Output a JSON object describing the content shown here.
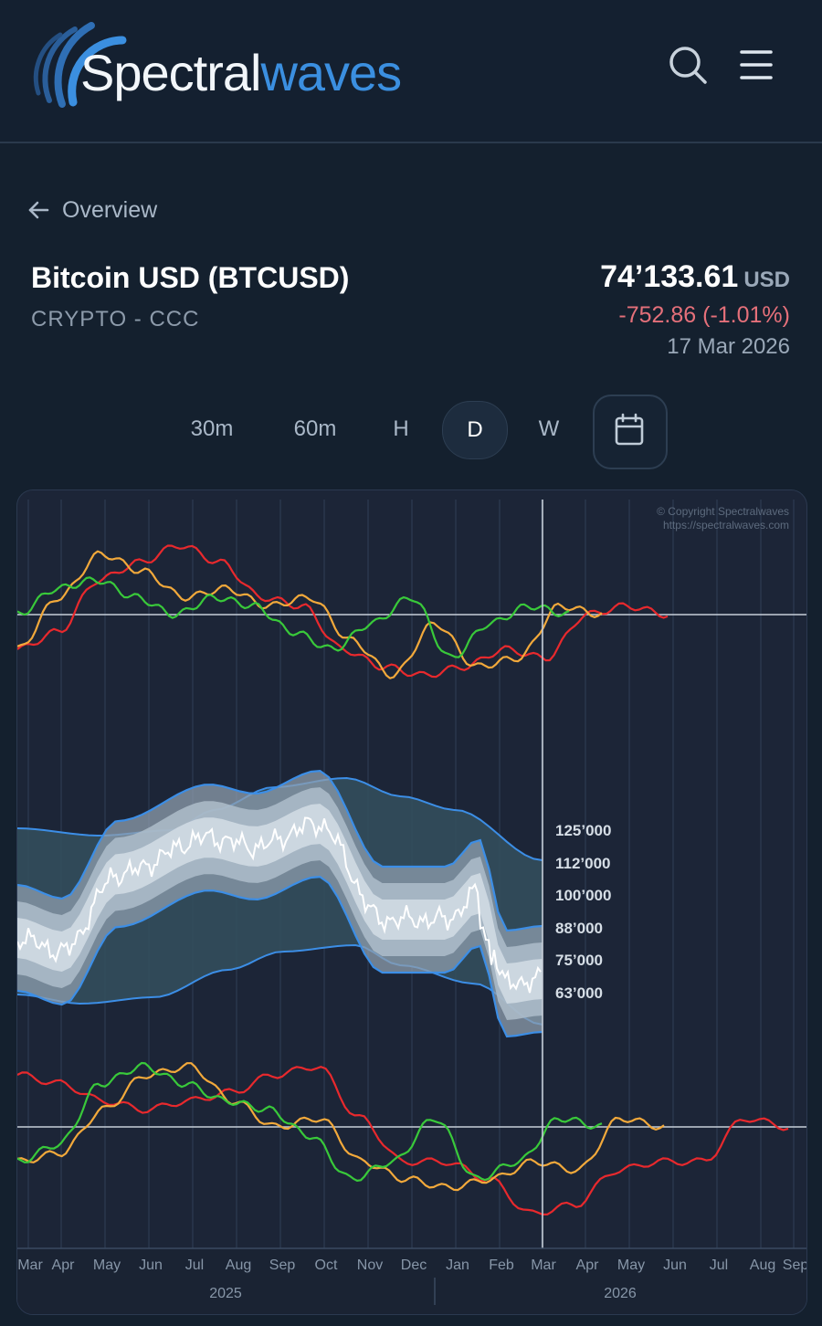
{
  "header": {
    "logo_part1": "Spectral",
    "logo_part2": "waves"
  },
  "nav": {
    "back_label": "Overview"
  },
  "instrument": {
    "name": "Bitcoin USD (BTCUSD)",
    "subtitle": "CRYPTO - CCC",
    "price": "74’133.61",
    "currency": "USD",
    "change": "-752.86 (-1.01%)",
    "date": "17 Mar 2026"
  },
  "timeframes": {
    "items": [
      "30m",
      "60m",
      "H",
      "D",
      "W"
    ],
    "active": "D"
  },
  "colors": {
    "background": "#14202e",
    "accent": "#3b8fe0",
    "negative": "#e5707a",
    "line_red": "#e8292d",
    "line_orange": "#f2a93b",
    "line_green": "#39c93a"
  },
  "chart_data": {
    "type": "line",
    "copyright_line1": "© Copyright Spectralwaves",
    "copyright_line2": "https://spectralwaves.com",
    "price_ticks": [
      "125’000",
      "112’000",
      "100’000",
      "88’000",
      "75’000",
      "63’000"
    ],
    "month_labels": [
      "Mar",
      "Apr",
      "May",
      "Jun",
      "Jul",
      "Aug",
      "Sep",
      "Oct",
      "Nov",
      "Dec",
      "Jan",
      "Feb",
      "Mar",
      "Apr",
      "May",
      "Jun",
      "Jul",
      "Aug",
      "Sep"
    ],
    "year_labels": [
      "2025",
      "2026"
    ],
    "x_range": [
      "Mar 2025",
      "Sep 2026"
    ],
    "price_range": [
      63000,
      125000
    ],
    "current_date_marker": "17 Mar 2026",
    "price_series": {
      "name": "",
      "dates": [
        "2025-03",
        "2025-04",
        "2025-05",
        "2025-06",
        "2025-07",
        "2025-08",
        "2025-09",
        "2025-10",
        "2025-11",
        "2025-12",
        "2026-01",
        "2026-02",
        "2026-03-17"
      ],
      "values": [
        84000,
        83000,
        96000,
        105000,
        108000,
        116000,
        112000,
        114000,
        98000,
        90000,
        95000,
        70000,
        74133
      ]
    },
    "upper_panel": {
      "series": [
        {
          "name": "",
          "color": "red",
          "values": [
            -0.4,
            -0.2,
            0.4,
            0.6,
            0.8,
            0.6,
            0.2,
            0.1,
            -0.4,
            -0.6,
            -0.7,
            -0.6,
            -0.4,
            -0.5,
            0.0,
            0.1,
            0.0
          ]
        },
        {
          "name": "",
          "color": "orange",
          "values": [
            -0.4,
            0.2,
            0.7,
            0.5,
            0.2,
            0.3,
            0.1,
            0.2,
            -0.3,
            -0.7,
            -0.1,
            -0.6,
            -0.5,
            0.1,
            0.0
          ]
        },
        {
          "name": "",
          "color": "green",
          "values": [
            0.0,
            0.3,
            0.4,
            0.2,
            0.0,
            0.2,
            0.1,
            -0.2,
            -0.4,
            -0.1,
            0.2,
            -0.5,
            -0.1,
            0.1,
            0.0
          ]
        }
      ]
    },
    "lower_panel": {
      "series": [
        {
          "name": "",
          "color": "red",
          "values": [
            0.6,
            0.5,
            0.3,
            0.2,
            0.3,
            0.4,
            0.6,
            0.7,
            0.1,
            -0.4,
            -0.4,
            -0.6,
            -1.0,
            -0.9,
            -0.5,
            -0.4,
            -0.4,
            0.1,
            0.0
          ]
        },
        {
          "name": "",
          "color": "orange",
          "values": [
            -0.4,
            -0.3,
            0.2,
            0.6,
            0.7,
            0.3,
            0.0,
            0.1,
            -0.4,
            -0.6,
            -0.7,
            -0.6,
            -0.4,
            -0.5,
            0.1,
            0.0
          ]
        },
        {
          "name": "",
          "color": "green",
          "values": [
            -0.4,
            -0.2,
            0.5,
            0.7,
            0.5,
            0.3,
            0.2,
            -0.1,
            -0.6,
            -0.4,
            0.1,
            -0.6,
            -0.4,
            0.1,
            0.0
          ]
        }
      ]
    }
  }
}
